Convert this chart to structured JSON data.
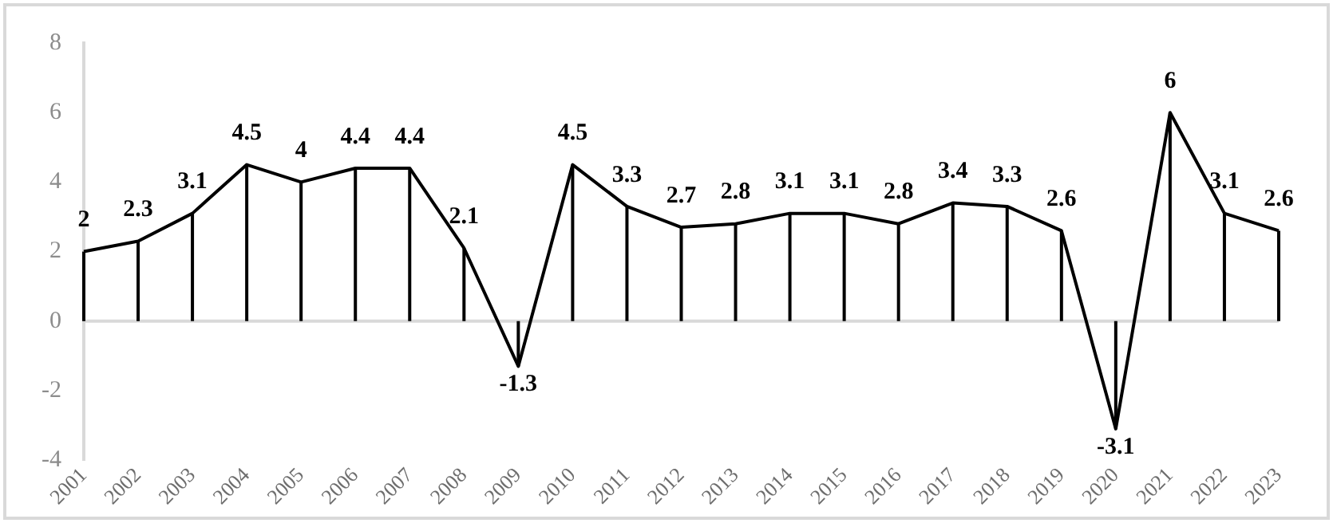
{
  "chart_data": {
    "type": "line",
    "categories": [
      "2001",
      "2002",
      "2003",
      "2004",
      "2005",
      "2006",
      "2007",
      "2008",
      "2009",
      "2010",
      "2011",
      "2012",
      "2013",
      "2014",
      "2015",
      "2016",
      "2017",
      "2018",
      "2019",
      "2020",
      "2021",
      "2022",
      "2023"
    ],
    "series": [
      {
        "color": "#000000",
        "values": [
          2,
          2.3,
          3.1,
          4.5,
          4,
          4.4,
          4.4,
          2.1,
          -1.3,
          4.5,
          3.3,
          2.7,
          2.8,
          3.1,
          3.1,
          2.8,
          3.4,
          3.3,
          2.6,
          -3.1,
          6,
          3.1,
          2.6
        ]
      }
    ],
    "ylim": [
      -4,
      8
    ],
    "yticks": [
      -4,
      -2,
      0,
      2,
      4,
      6,
      8
    ],
    "grid": false,
    "ref_lines": [
      {
        "axis": "y",
        "value": 0,
        "color": "#d9d9d9"
      }
    ],
    "legend": false,
    "marker": "none",
    "line_style": "solid",
    "data_labels": true
  }
}
